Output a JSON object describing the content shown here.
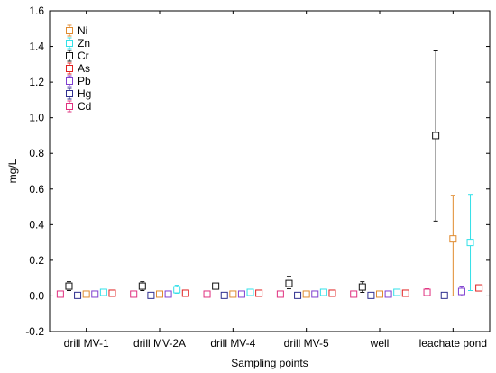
{
  "chart_data": {
    "type": "scatter",
    "title": "",
    "xlabel": "Sampling points",
    "ylabel": "mg/L",
    "ylim": [
      -0.2,
      1.6
    ],
    "yticks": [
      "-0.2",
      "0.0",
      "0.2",
      "0.4",
      "0.6",
      "0.8",
      "1.0",
      "1.2",
      "1.4",
      "1.6"
    ],
    "categories": [
      "drill MV-1",
      "drill MV-2A",
      "drill MV-4",
      "drill MV-5",
      "well",
      "leachate pond"
    ],
    "grid": false,
    "legend_position": "top-left",
    "marker": "open-square-with-error-bars",
    "series": [
      {
        "name": "Cd",
        "color": "#e0307f",
        "values": [
          0.01,
          0.01,
          0.01,
          0.01,
          0.01,
          0.02
        ],
        "err_low": [
          0.0,
          0.0,
          0.0,
          0.0,
          0.0,
          0.0
        ],
        "err_high": [
          0.02,
          0.02,
          0.02,
          0.02,
          0.02,
          0.04
        ]
      },
      {
        "name": "Cr",
        "color": "#111111",
        "values": [
          0.055,
          0.055,
          0.055,
          0.07,
          0.05,
          0.9
        ],
        "err_low": [
          0.03,
          0.03,
          0.045,
          0.04,
          0.02,
          0.42
        ],
        "err_high": [
          0.08,
          0.08,
          0.07,
          0.11,
          0.08,
          1.375
        ]
      },
      {
        "name": "Hg",
        "color": "#2f2f8f",
        "values": [
          0.003,
          0.003,
          0.003,
          0.003,
          0.003,
          0.003
        ],
        "err_low": [
          0.0,
          0.0,
          0.0,
          0.0,
          0.0,
          0.0
        ],
        "err_high": [
          0.006,
          0.006,
          0.006,
          0.006,
          0.006,
          0.006
        ]
      },
      {
        "name": "Ni",
        "color": "#e08a2e",
        "values": [
          0.01,
          0.01,
          0.01,
          0.01,
          0.01,
          0.32
        ],
        "err_low": [
          0.0,
          0.0,
          0.0,
          0.0,
          0.0,
          0.0
        ],
        "err_high": [
          0.02,
          0.02,
          0.02,
          0.02,
          0.02,
          0.565
        ]
      },
      {
        "name": "Pb",
        "color": "#7f3fd0",
        "values": [
          0.01,
          0.01,
          0.01,
          0.01,
          0.01,
          0.025
        ],
        "err_low": [
          0.0,
          0.0,
          0.0,
          0.0,
          0.0,
          0.0
        ],
        "err_high": [
          0.02,
          0.02,
          0.02,
          0.02,
          0.02,
          0.055
        ]
      },
      {
        "name": "Zn",
        "color": "#33e0e8",
        "values": [
          0.02,
          0.035,
          0.02,
          0.02,
          0.02,
          0.3
        ],
        "err_low": [
          0.01,
          0.015,
          0.01,
          0.01,
          0.01,
          0.03
        ],
        "err_high": [
          0.03,
          0.06,
          0.03,
          0.03,
          0.03,
          0.57
        ]
      },
      {
        "name": "As",
        "color": "#e02020",
        "values": [
          0.015,
          0.015,
          0.015,
          0.015,
          0.015,
          0.045
        ],
        "err_low": [
          0.005,
          0.005,
          0.005,
          0.005,
          0.005,
          0.03
        ],
        "err_high": [
          0.025,
          0.025,
          0.025,
          0.025,
          0.025,
          0.06
        ]
      }
    ],
    "legend_order": [
      "Ni",
      "Zn",
      "Cr",
      "As",
      "Pb",
      "Hg",
      "Cd"
    ]
  }
}
